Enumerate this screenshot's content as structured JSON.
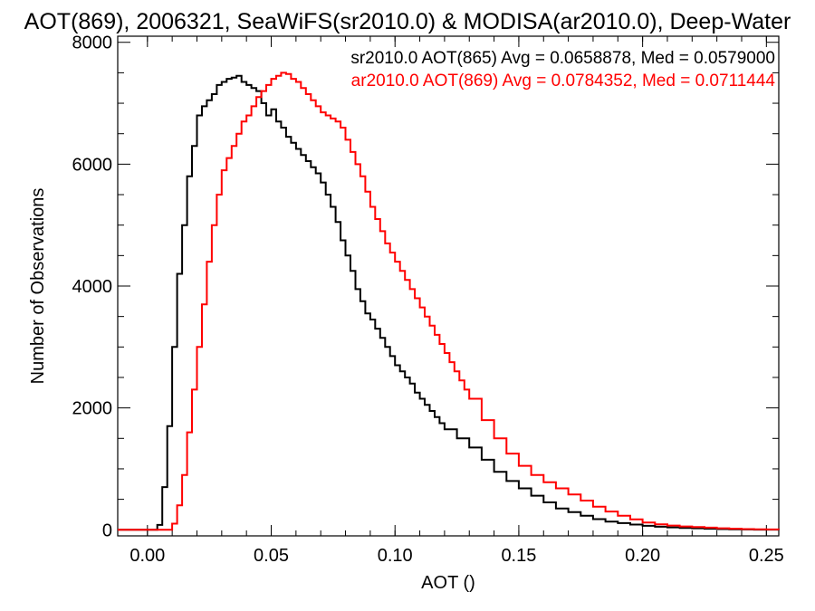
{
  "chart_data": {
    "type": "line",
    "title": "AOT(869), 2006321, SeaWiFS(sr2010.0) & MODISA(ar2010.0), Deep-Water",
    "xlabel": "AOT ()",
    "ylabel": "Number of Observations",
    "xlim": [
      -0.012,
      0.255
    ],
    "ylim": [
      -100,
      8100
    ],
    "x_ticks": [
      0.0,
      0.05,
      0.1,
      0.15,
      0.2,
      0.25
    ],
    "x_tick_labels": [
      "0.00",
      "0.05",
      "0.10",
      "0.15",
      "0.20",
      "0.25"
    ],
    "y_ticks": [
      0,
      2000,
      4000,
      6000,
      8000
    ],
    "y_tick_labels": [
      "0",
      "2000",
      "4000",
      "6000",
      "8000"
    ],
    "grid": false,
    "legend_placement": "top-right",
    "series": [
      {
        "name": "sr2010.0 AOT(865) Avg = 0.0658878, Med = 0.0579000",
        "color": "#000000",
        "x": [
          -0.012,
          0.002,
          0.004,
          0.006,
          0.008,
          0.01,
          0.012,
          0.014,
          0.016,
          0.018,
          0.02,
          0.022,
          0.024,
          0.026,
          0.028,
          0.03,
          0.032,
          0.034,
          0.036,
          0.038,
          0.04,
          0.042,
          0.044,
          0.046,
          0.048,
          0.05,
          0.052,
          0.054,
          0.056,
          0.058,
          0.06,
          0.062,
          0.064,
          0.066,
          0.068,
          0.07,
          0.072,
          0.074,
          0.076,
          0.078,
          0.08,
          0.082,
          0.084,
          0.086,
          0.088,
          0.09,
          0.092,
          0.094,
          0.096,
          0.098,
          0.1,
          0.102,
          0.104,
          0.106,
          0.108,
          0.11,
          0.112,
          0.114,
          0.116,
          0.118,
          0.12,
          0.125,
          0.13,
          0.135,
          0.14,
          0.145,
          0.15,
          0.155,
          0.16,
          0.165,
          0.17,
          0.175,
          0.18,
          0.185,
          0.19,
          0.195,
          0.2,
          0.205,
          0.21,
          0.215,
          0.22,
          0.225,
          0.23,
          0.235,
          0.24,
          0.245,
          0.25,
          0.255
        ],
        "y": [
          0,
          0,
          80,
          700,
          1700,
          3000,
          4200,
          5000,
          5800,
          6300,
          6800,
          6950,
          7050,
          7150,
          7300,
          7350,
          7400,
          7420,
          7450,
          7350,
          7300,
          7250,
          7200,
          7000,
          6800,
          6900,
          6700,
          6600,
          6450,
          6350,
          6250,
          6150,
          6050,
          5950,
          5850,
          5700,
          5500,
          5300,
          5050,
          4750,
          4500,
          4250,
          3950,
          3750,
          3550,
          3450,
          3300,
          3150,
          3000,
          2850,
          2700,
          2600,
          2500,
          2400,
          2250,
          2150,
          2050,
          1950,
          1850,
          1750,
          1650,
          1500,
          1350,
          1150,
          950,
          800,
          680,
          560,
          450,
          350,
          290,
          230,
          175,
          135,
          110,
          85,
          65,
          50,
          40,
          30,
          25,
          18,
          12,
          8,
          5,
          3,
          2,
          1
        ]
      },
      {
        "name": "ar2010.0 AOT(869) Avg = 0.0784352, Med = 0.0711444",
        "color": "#ff0000",
        "x": [
          -0.012,
          0.008,
          0.01,
          0.012,
          0.014,
          0.016,
          0.018,
          0.02,
          0.022,
          0.024,
          0.026,
          0.028,
          0.03,
          0.032,
          0.034,
          0.036,
          0.038,
          0.04,
          0.042,
          0.044,
          0.046,
          0.048,
          0.05,
          0.052,
          0.054,
          0.056,
          0.058,
          0.06,
          0.062,
          0.064,
          0.066,
          0.068,
          0.07,
          0.072,
          0.074,
          0.076,
          0.078,
          0.08,
          0.082,
          0.084,
          0.086,
          0.088,
          0.09,
          0.092,
          0.094,
          0.096,
          0.098,
          0.1,
          0.102,
          0.104,
          0.106,
          0.108,
          0.11,
          0.112,
          0.114,
          0.116,
          0.118,
          0.12,
          0.122,
          0.124,
          0.126,
          0.128,
          0.13,
          0.135,
          0.14,
          0.145,
          0.15,
          0.155,
          0.16,
          0.165,
          0.17,
          0.175,
          0.18,
          0.185,
          0.19,
          0.195,
          0.2,
          0.205,
          0.21,
          0.215,
          0.22,
          0.225,
          0.23,
          0.235,
          0.24,
          0.245,
          0.25,
          0.255
        ],
        "y": [
          0,
          0,
          100,
          400,
          900,
          1600,
          2300,
          3000,
          3700,
          4400,
          5000,
          5500,
          5900,
          6100,
          6300,
          6500,
          6700,
          6800,
          6950,
          7100,
          7200,
          7300,
          7400,
          7450,
          7500,
          7480,
          7400,
          7350,
          7250,
          7150,
          7050,
          6950,
          6850,
          6800,
          6750,
          6700,
          6600,
          6400,
          6200,
          6000,
          5800,
          5550,
          5300,
          5100,
          4900,
          4700,
          4550,
          4400,
          4250,
          4100,
          3950,
          3800,
          3650,
          3500,
          3350,
          3200,
          3050,
          2900,
          2750,
          2600,
          2450,
          2300,
          2150,
          1800,
          1500,
          1250,
          1050,
          900,
          780,
          680,
          580,
          480,
          380,
          300,
          230,
          170,
          120,
          90,
          70,
          55,
          45,
          35,
          25,
          18,
          12,
          8,
          5,
          2
        ]
      }
    ]
  }
}
